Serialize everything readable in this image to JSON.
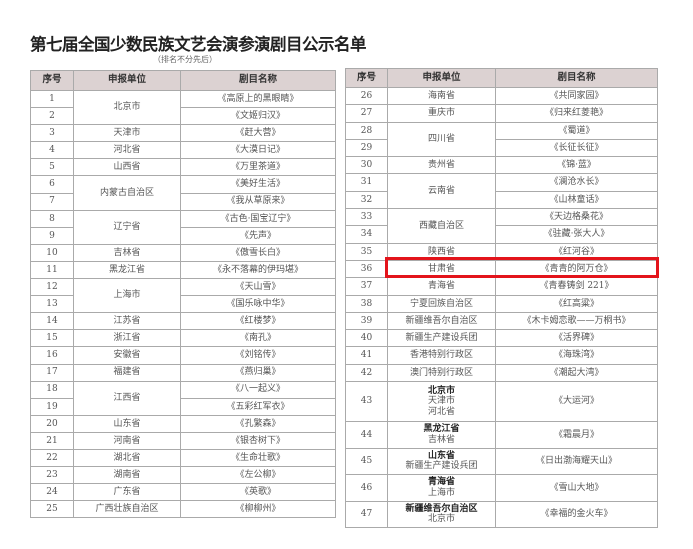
{
  "title": "第七届全国少数民族文艺会演参演剧目公示名单",
  "subtitle": "（排名不分先后）",
  "columns": [
    "序号",
    "申报单位",
    "剧目名称"
  ],
  "highlight_color": "#e3141b",
  "left_table": [
    {
      "units": [
        "北京市"
      ],
      "items": [
        [
          "1",
          "《高原上的黑眼睛》"
        ],
        [
          "2",
          "《文姬归汉》"
        ]
      ]
    },
    {
      "units": [
        "天津市"
      ],
      "items": [
        [
          "3",
          "《赶大营》"
        ]
      ]
    },
    {
      "units": [
        "河北省"
      ],
      "items": [
        [
          "4",
          "《大漠日记》"
        ]
      ]
    },
    {
      "units": [
        "山西省"
      ],
      "items": [
        [
          "5",
          "《万里茶道》"
        ]
      ]
    },
    {
      "units": [
        "内蒙古自治区"
      ],
      "items": [
        [
          "6",
          "《美好生活》"
        ],
        [
          "7",
          "《我从草原来》"
        ]
      ]
    },
    {
      "units": [
        "辽宁省"
      ],
      "items": [
        [
          "8",
          "《古色·国宝辽宁》"
        ],
        [
          "9",
          "《先声》"
        ]
      ]
    },
    {
      "units": [
        "吉林省"
      ],
      "items": [
        [
          "10",
          "《傲雪长白》"
        ]
      ]
    },
    {
      "units": [
        "黑龙江省"
      ],
      "items": [
        [
          "11",
          "《永不落幕的伊玛堪》"
        ]
      ]
    },
    {
      "units": [
        "上海市"
      ],
      "items": [
        [
          "12",
          "《天山雪》"
        ],
        [
          "13",
          "《国乐咏中华》"
        ]
      ]
    },
    {
      "units": [
        "江苏省"
      ],
      "items": [
        [
          "14",
          "《红楼梦》"
        ]
      ]
    },
    {
      "units": [
        "浙江省"
      ],
      "items": [
        [
          "15",
          "《南孔》"
        ]
      ]
    },
    {
      "units": [
        "安徽省"
      ],
      "items": [
        [
          "16",
          "《刘铭传》"
        ]
      ]
    },
    {
      "units": [
        "福建省"
      ],
      "items": [
        [
          "17",
          "《燕归巢》"
        ]
      ]
    },
    {
      "units": [
        "江西省"
      ],
      "items": [
        [
          "18",
          "《八一起义》"
        ],
        [
          "19",
          "《五彩红军衣》"
        ]
      ]
    },
    {
      "units": [
        "山东省"
      ],
      "items": [
        [
          "20",
          "《孔繁森》"
        ]
      ]
    },
    {
      "units": [
        "河南省"
      ],
      "items": [
        [
          "21",
          "《银杏树下》"
        ]
      ]
    },
    {
      "units": [
        "湖北省"
      ],
      "items": [
        [
          "22",
          "《生命壮歌》"
        ]
      ]
    },
    {
      "units": [
        "湖南省"
      ],
      "items": [
        [
          "23",
          "《左公柳》"
        ]
      ]
    },
    {
      "units": [
        "广东省"
      ],
      "items": [
        [
          "24",
          "《英歌》"
        ]
      ]
    },
    {
      "units": [
        "广西壮族自治区"
      ],
      "items": [
        [
          "25",
          "《柳柳州》"
        ]
      ]
    }
  ],
  "right_table": [
    {
      "units": [
        "海南省"
      ],
      "items": [
        [
          "26",
          "《共同家园》"
        ]
      ]
    },
    {
      "units": [
        "重庆市"
      ],
      "items": [
        [
          "27",
          "《归来红菱艳》"
        ]
      ]
    },
    {
      "units": [
        "四川省"
      ],
      "items": [
        [
          "28",
          "《蜀道》"
        ],
        [
          "29",
          "《长征长征》"
        ]
      ]
    },
    {
      "units": [
        "贵州省"
      ],
      "items": [
        [
          "30",
          "《锦·蓝》"
        ]
      ]
    },
    {
      "units": [
        "云南省"
      ],
      "items": [
        [
          "31",
          "《澜沧水长》"
        ],
        [
          "32",
          "《山林童话》"
        ]
      ]
    },
    {
      "units": [
        "西藏自治区"
      ],
      "items": [
        [
          "33",
          "《天边格桑花》"
        ],
        [
          "34",
          "《驻藏·张大人》"
        ]
      ]
    },
    {
      "units": [
        "陕西省"
      ],
      "items": [
        [
          "35",
          "《红河谷》"
        ]
      ]
    },
    {
      "units": [
        "甘肃省"
      ],
      "items": [
        [
          "36",
          "《青青的阿万仓》"
        ]
      ],
      "highlighted": true
    },
    {
      "units": [
        "青海省"
      ],
      "items": [
        [
          "37",
          "《青春铸剑 221》"
        ]
      ]
    },
    {
      "units": [
        "宁夏回族自治区"
      ],
      "items": [
        [
          "38",
          "《红高粱》"
        ]
      ]
    },
    {
      "units": [
        "新疆维吾尔自治区"
      ],
      "items": [
        [
          "39",
          "《木卡姆恋歌——万桐书》"
        ]
      ]
    },
    {
      "units": [
        "新疆生产建设兵团"
      ],
      "items": [
        [
          "40",
          "《活界碑》"
        ]
      ]
    },
    {
      "units": [
        "香港特别行政区"
      ],
      "items": [
        [
          "41",
          "《海珠湾》"
        ]
      ]
    },
    {
      "units": [
        "澳门特别行政区"
      ],
      "items": [
        [
          "42",
          "《潮起大湾》"
        ]
      ]
    },
    {
      "units": [
        "北京市",
        "天津市",
        "河北省"
      ],
      "items": [
        [
          "43",
          "《大运河》"
        ]
      ]
    },
    {
      "units": [
        "黑龙江省",
        "吉林省"
      ],
      "items": [
        [
          "44",
          "《霜晨月》"
        ]
      ]
    },
    {
      "units": [
        "山东省",
        "新疆生产建设兵团"
      ],
      "items": [
        [
          "45",
          "《日出渤海耀天山》"
        ]
      ]
    },
    {
      "units": [
        "青海省",
        "上海市"
      ],
      "items": [
        [
          "46",
          "《雪山大地》"
        ]
      ]
    },
    {
      "units": [
        "新疆维吾尔自治区",
        "北京市"
      ],
      "items": [
        [
          "47",
          "《幸福的金火车》"
        ]
      ]
    }
  ]
}
